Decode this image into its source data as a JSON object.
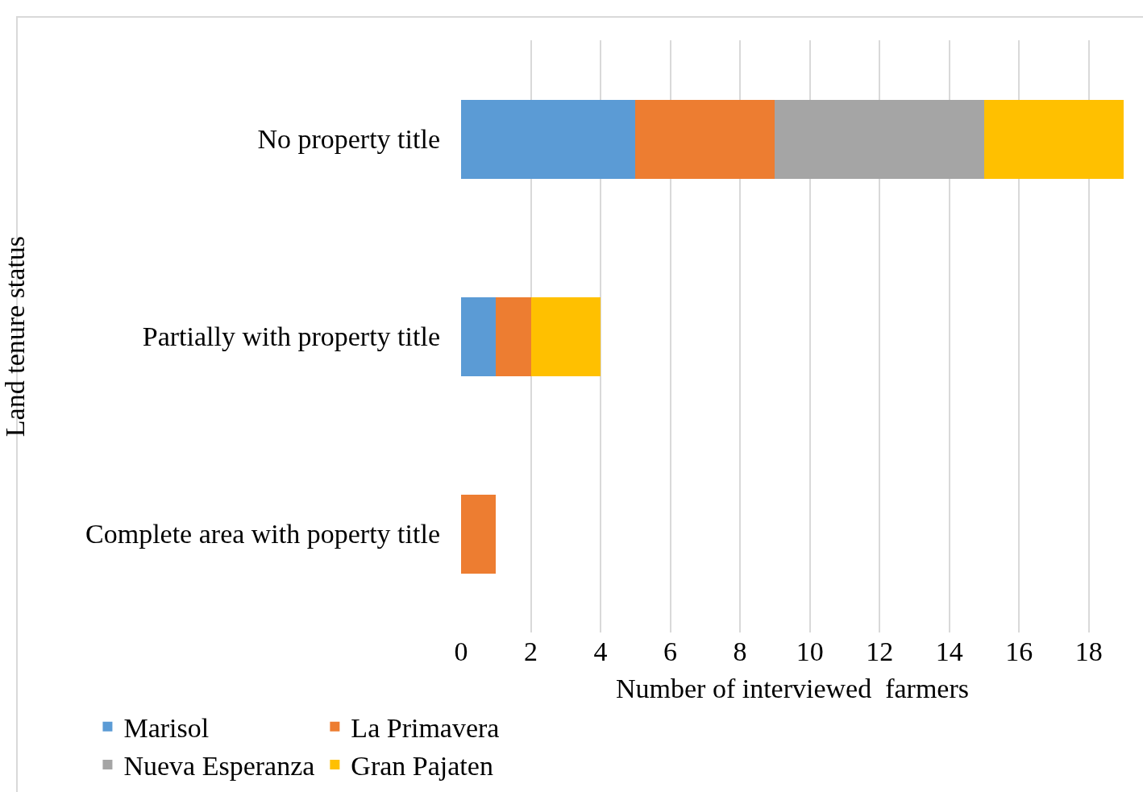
{
  "chart_data": {
    "type": "bar",
    "orientation": "horizontal",
    "stacked": true,
    "xlabel": "Number of interviewed  farmers",
    "ylabel": "Land tenure status",
    "categories": [
      "No property title",
      "Partially with property title",
      "Complete area with poperty title"
    ],
    "series": [
      {
        "name": "Marisol",
        "color": "#5b9bd5",
        "values": [
          5,
          1,
          0
        ]
      },
      {
        "name": "La Primavera",
        "color": "#ed7d31",
        "values": [
          4,
          1,
          1
        ]
      },
      {
        "name": "Nueva Esperanza",
        "color": "#a5a5a5",
        "values": [
          6,
          0,
          0
        ]
      },
      {
        "name": "Gran Pajaten",
        "color": "#ffc000",
        "values": [
          4,
          2,
          0
        ]
      }
    ],
    "xlim": [
      0,
      19
    ],
    "xticks": [
      0,
      2,
      4,
      6,
      8,
      10,
      12,
      14,
      16,
      18
    ],
    "grid": "x",
    "legend": "bottom"
  }
}
